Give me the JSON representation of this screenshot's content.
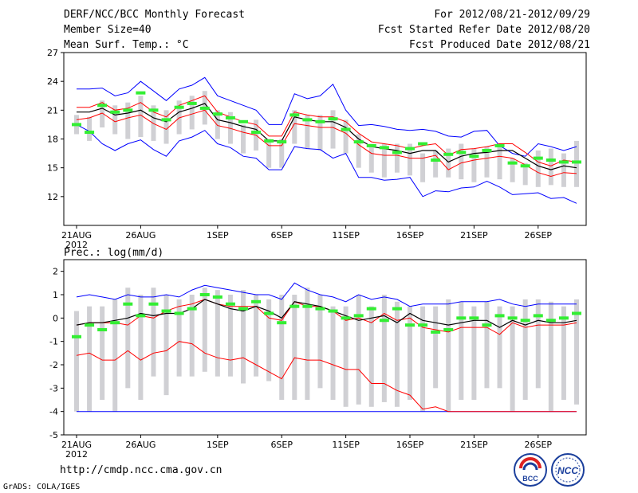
{
  "header": {
    "title": "DERF/NCC/BCC Monthly Forecast",
    "member_size": "Member Size=40",
    "variable": "Mean Surf. Temp.: °C",
    "period": "For 2012/08/21-2012/09/29",
    "fcst_started": "Fcst Started Refer Date 2012/08/20",
    "fcst_produced": "Fcst Produced Date 2012/08/21"
  },
  "footer": {
    "url": "http://cmdp.ncc.cma.gov.cn",
    "credit": "GrADS: COLA/IGES",
    "logo_left_text": "BCC",
    "logo_right_text": "NCC"
  },
  "colors": {
    "envelope": "#0000ff",
    "spread": "#ff0000",
    "mean": "#000000",
    "box": "#d0d0d4",
    "observed": "#33ee33"
  },
  "chart_data": [
    {
      "type": "box-plot",
      "title": "Mean Surf. Temp.: °C",
      "xlabel": "",
      "ylabel": "°C",
      "ylim": [
        9,
        27
      ],
      "yticks": [
        12,
        15,
        18,
        21,
        24,
        27
      ],
      "xticks": [
        {
          "day": 1,
          "label": "21AUG"
        },
        {
          "day": 6,
          "label": "26AUG"
        },
        {
          "day": 12,
          "label": "1SEP"
        },
        {
          "day": 17,
          "label": "6SEP"
        },
        {
          "day": 22,
          "label": "11SEP"
        },
        {
          "day": 27,
          "label": "16SEP"
        },
        {
          "day": 32,
          "label": "21SEP"
        },
        {
          "day": 37,
          "label": "26SEP"
        }
      ],
      "year_label": "2012",
      "days": [
        1,
        2,
        3,
        4,
        5,
        6,
        7,
        8,
        9,
        10,
        11,
        12,
        13,
        14,
        15,
        16,
        17,
        18,
        19,
        20,
        21,
        22,
        23,
        24,
        25,
        26,
        27,
        28,
        29,
        30,
        31,
        32,
        33,
        34,
        35,
        36,
        37,
        38,
        39,
        40
      ],
      "box_top": [
        20.5,
        20.3,
        22.0,
        21.5,
        21.8,
        22.5,
        21.5,
        21.0,
        22.0,
        22.5,
        23.0,
        21.0,
        20.8,
        19.5,
        20.0,
        18.0,
        18.0,
        21.0,
        20.5,
        20.5,
        21.0,
        20.0,
        18.5,
        17.5,
        17.5,
        17.5,
        17.5,
        16.5,
        16.8,
        17.0,
        17.5,
        17.0,
        17.2,
        17.5,
        16.0,
        15.5,
        16.8,
        17.0,
        16.5,
        17.8
      ],
      "box_bottom": [
        18.5,
        17.8,
        19.2,
        18.5,
        18.0,
        18.2,
        17.8,
        17.5,
        18.5,
        19.0,
        19.5,
        18.0,
        17.5,
        16.5,
        16.8,
        15.0,
        15.0,
        17.5,
        17.0,
        16.8,
        17.0,
        16.5,
        15.0,
        14.5,
        14.0,
        14.5,
        14.2,
        13.5,
        14.0,
        14.0,
        13.8,
        13.5,
        14.0,
        13.8,
        13.5,
        13.2,
        13.0,
        13.2,
        13.0,
        13.0
      ],
      "mean": [
        20.8,
        20.8,
        21.2,
        20.5,
        20.7,
        21.0,
        20.2,
        19.8,
        20.8,
        21.2,
        21.7,
        20.0,
        19.7,
        19.3,
        19.0,
        17.8,
        17.8,
        20.3,
        20.0,
        19.8,
        19.8,
        19.2,
        18.0,
        17.2,
        17.0,
        16.8,
        16.5,
        16.8,
        16.8,
        15.6,
        16.2,
        16.5,
        16.6,
        16.8,
        16.8,
        16.0,
        15.2,
        14.8,
        15.2,
        15.0
      ],
      "upper_red": [
        21.3,
        21.3,
        21.8,
        21.0,
        21.2,
        21.8,
        20.8,
        20.3,
        21.5,
        22.0,
        22.5,
        20.8,
        20.3,
        19.8,
        19.5,
        18.3,
        18.3,
        20.8,
        20.5,
        20.3,
        20.3,
        19.8,
        18.6,
        17.7,
        17.5,
        17.3,
        17.0,
        17.3,
        17.5,
        16.3,
        16.9,
        17.0,
        17.2,
        17.5,
        17.5,
        16.6,
        15.6,
        15.2,
        15.8,
        15.6
      ],
      "lower_red": [
        20.0,
        20.2,
        20.7,
        19.8,
        20.2,
        20.5,
        19.6,
        19.0,
        20.2,
        20.6,
        21.0,
        19.4,
        19.1,
        18.7,
        18.4,
        17.3,
        17.3,
        19.6,
        19.4,
        19.2,
        19.2,
        18.6,
        17.4,
        16.5,
        16.3,
        16.3,
        16.0,
        16.0,
        16.3,
        14.8,
        15.5,
        15.8,
        16.0,
        16.2,
        16.0,
        15.3,
        14.5,
        14.1,
        14.5,
        14.4
      ],
      "upper_blue": [
        23.2,
        23.2,
        23.3,
        22.5,
        22.8,
        24.0,
        23.0,
        22.0,
        23.2,
        23.6,
        24.4,
        22.5,
        22.0,
        21.5,
        21.0,
        19.5,
        19.5,
        22.7,
        22.2,
        22.5,
        23.7,
        21.0,
        19.4,
        19.5,
        19.3,
        19.0,
        18.9,
        19.0,
        18.8,
        18.3,
        18.2,
        18.8,
        18.9,
        17.3,
        16.5,
        16.2,
        17.5,
        17.2,
        16.8,
        17.2
      ],
      "lower_blue": [
        19.5,
        18.8,
        17.5,
        16.8,
        17.5,
        17.9,
        16.9,
        16.2,
        17.8,
        18.2,
        18.9,
        17.5,
        17.1,
        16.2,
        16.0,
        14.8,
        14.8,
        17.2,
        17.0,
        16.9,
        16.0,
        16.5,
        14.0,
        14.0,
        13.7,
        13.8,
        14.0,
        12.0,
        12.6,
        12.5,
        12.9,
        13.0,
        13.6,
        13.0,
        12.2,
        12.3,
        12.4,
        11.8,
        11.9,
        11.3
      ],
      "observed": [
        19.5,
        18.7,
        21.5,
        20.8,
        21.0,
        22.8,
        21.0,
        20.0,
        21.3,
        21.7,
        21.2,
        20.6,
        20.2,
        19.8,
        18.7,
        17.8,
        17.7,
        20.5,
        20.0,
        19.8,
        20.1,
        19.0,
        17.7,
        17.3,
        17.1,
        16.6,
        17.0,
        17.5,
        15.8,
        16.4,
        16.6,
        16.2,
        16.8,
        17.3,
        15.5,
        15.2,
        16.0,
        15.8,
        15.6,
        15.6
      ]
    },
    {
      "type": "box-plot",
      "title": "Prec.: log(mm/d)",
      "xlabel": "",
      "ylabel": "log(mm/d)",
      "ylim": [
        -5,
        2.5
      ],
      "yticks": [
        -5,
        -4,
        -3,
        -2,
        -1,
        0,
        1,
        2
      ],
      "xticks": [
        {
          "day": 1,
          "label": "21AUG"
        },
        {
          "day": 6,
          "label": "26AUG"
        },
        {
          "day": 12,
          "label": "1SEP"
        },
        {
          "day": 17,
          "label": "6SEP"
        },
        {
          "day": 22,
          "label": "11SEP"
        },
        {
          "day": 27,
          "label": "16SEP"
        },
        {
          "day": 32,
          "label": "21SEP"
        },
        {
          "day": 37,
          "label": "26SEP"
        }
      ],
      "year_label": "2012",
      "days": [
        1,
        2,
        3,
        4,
        5,
        6,
        7,
        8,
        9,
        10,
        11,
        12,
        13,
        14,
        15,
        16,
        17,
        18,
        19,
        20,
        21,
        22,
        23,
        24,
        25,
        26,
        27,
        28,
        29,
        30,
        31,
        32,
        33,
        34,
        35,
        36,
        37,
        38,
        39,
        40
      ],
      "box_top": [
        0.3,
        0.5,
        0.5,
        0.8,
        1.3,
        1.0,
        1.3,
        1.0,
        0.8,
        1.0,
        1.3,
        1.2,
        1.0,
        1.2,
        1.0,
        0.8,
        1.0,
        1.0,
        1.3,
        1.0,
        0.5,
        0.5,
        1.0,
        0.5,
        1.0,
        0.7,
        0.5,
        0.5,
        0.5,
        0.8,
        0.7,
        0.5,
        0.7,
        0.5,
        0.5,
        0.8,
        0.8,
        0.7,
        0.5,
        0.8
      ],
      "box_bottom": [
        -4.0,
        -4.0,
        -3.5,
        -4.0,
        -3.0,
        -3.5,
        -2.5,
        -3.3,
        -2.5,
        -2.5,
        -2.3,
        -2.5,
        -2.5,
        -2.8,
        -2.5,
        -2.7,
        -3.5,
        -3.5,
        -3.5,
        -3.0,
        -3.5,
        -3.8,
        -3.7,
        -3.8,
        -3.6,
        -3.8,
        -3.5,
        -4.0,
        -3.0,
        -4.0,
        -3.5,
        -3.5,
        -3.0,
        -3.0,
        -4.0,
        -3.5,
        -3.0,
        -4.0,
        -3.5,
        -3.7
      ],
      "mean": [
        -0.3,
        -0.2,
        -0.2,
        -0.1,
        0.0,
        0.2,
        0.1,
        0.2,
        0.2,
        0.4,
        0.8,
        0.6,
        0.4,
        0.3,
        0.5,
        0.3,
        0.0,
        0.7,
        0.6,
        0.5,
        0.3,
        0.1,
        -0.1,
        0.0,
        0.1,
        -0.2,
        0.2,
        -0.1,
        -0.2,
        -0.3,
        -0.2,
        -0.1,
        -0.1,
        -0.4,
        -0.1,
        -0.3,
        -0.1,
        -0.2,
        -0.2,
        -0.1
      ],
      "upper_red": [
        -0.3,
        -0.2,
        -0.2,
        -0.2,
        -0.3,
        0.1,
        0.0,
        0.3,
        0.5,
        0.6,
        0.8,
        0.6,
        0.5,
        0.5,
        0.5,
        0.0,
        -0.1,
        0.7,
        0.5,
        0.5,
        0.3,
        -0.1,
        0.0,
        -0.2,
        0.2,
        -0.1,
        0.0,
        -0.4,
        -0.5,
        -0.6,
        -0.4,
        -0.4,
        -0.4,
        -0.7,
        -0.2,
        -0.4,
        -0.3,
        -0.3,
        -0.3,
        -0.2
      ],
      "lower_red": [
        -1.6,
        -1.5,
        -1.8,
        -1.8,
        -1.4,
        -1.8,
        -1.5,
        -1.4,
        -1.0,
        -1.1,
        -1.5,
        -1.7,
        -1.8,
        -1.7,
        -2.0,
        -2.3,
        -2.6,
        -1.7,
        -1.8,
        -1.8,
        -2.0,
        -2.2,
        -2.2,
        -2.8,
        -2.8,
        -3.1,
        -3.3,
        -3.9,
        -3.8,
        -4.0,
        -4.0,
        -4.0,
        -4.0,
        -4.0,
        -4.0,
        -4.0,
        -4.0,
        -4.0,
        -4.0,
        -4.0
      ],
      "upper_blue": [
        0.9,
        1.0,
        0.9,
        0.8,
        1.0,
        0.9,
        0.9,
        1.0,
        0.9,
        1.2,
        1.4,
        1.3,
        1.2,
        1.1,
        1.0,
        1.0,
        0.8,
        1.5,
        1.2,
        1.0,
        0.9,
        0.7,
        1.0,
        0.8,
        0.9,
        0.8,
        0.5,
        0.6,
        0.6,
        0.6,
        0.7,
        0.7,
        0.7,
        0.8,
        0.6,
        0.5,
        0.6,
        0.6,
        0.6,
        0.6
      ],
      "lower_blue": [
        -4.0,
        -4.0,
        -4.0,
        -4.0,
        -4.0,
        -4.0,
        -4.0,
        -4.0,
        -4.0,
        -4.0,
        -4.0,
        -4.0,
        -4.0,
        -4.0,
        -4.0,
        -4.0,
        -4.0,
        -4.0,
        -4.0,
        -4.0,
        -4.0,
        -4.0,
        -4.0,
        -4.0,
        -4.0,
        -4.0,
        -4.0,
        -4.0,
        -4.0,
        -4.0,
        -4.0,
        -4.0,
        -4.0,
        -4.0,
        -4.0,
        -4.0,
        -4.0,
        -4.0,
        -4.0,
        -4.0
      ],
      "observed": [
        -0.8,
        -0.3,
        -0.5,
        -0.2,
        0.6,
        0.1,
        0.6,
        0.3,
        0.2,
        0.4,
        1.0,
        0.9,
        0.6,
        0.4,
        0.7,
        0.2,
        -0.2,
        0.5,
        0.5,
        0.4,
        0.3,
        0.0,
        0.1,
        0.4,
        -0.1,
        0.4,
        -0.3,
        -0.3,
        -0.6,
        -0.5,
        0.0,
        0.0,
        -0.3,
        0.1,
        0.0,
        -0.1,
        0.1,
        -0.1,
        0.0,
        0.2
      ]
    }
  ]
}
